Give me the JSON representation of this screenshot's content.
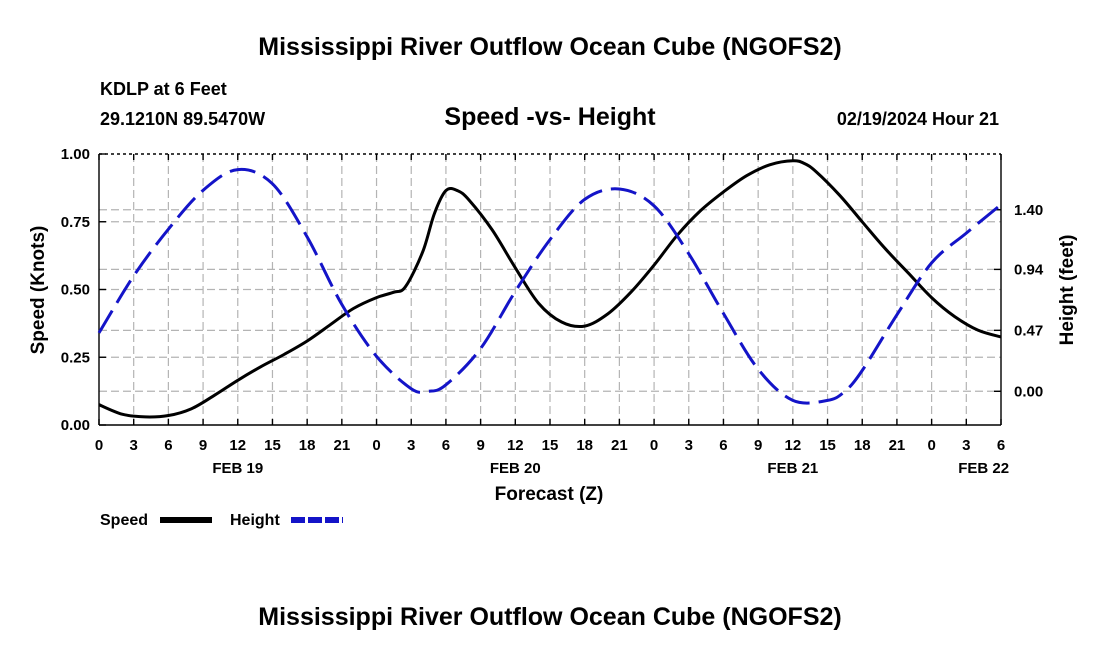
{
  "colors": {
    "speed": "#000000",
    "height": "#1414c8",
    "grid": "#b4b4b4"
  },
  "header": {
    "title_top": "Mississippi River Outflow Ocean Cube (NGOFS2)",
    "station": "KDLP at 6 Feet",
    "coords": "29.1210N  89.5470W",
    "chart_title": "Speed -vs- Height",
    "datetime": "02/19/2024 Hour 21",
    "title_bottom": "Mississippi River Outflow Ocean Cube (NGOFS2)"
  },
  "legend": {
    "speed_label": "Speed",
    "height_label": "Height"
  },
  "chart_data": {
    "type": "line",
    "title": "Speed -vs- Height",
    "xlabel": "Forecast (Z)",
    "ylabel": "Speed (Knots)",
    "y2label": "Height (feet)",
    "xlim": [
      0,
      78
    ],
    "ylim": [
      0,
      1.0
    ],
    "y2lim": [
      -0.26,
      1.83
    ],
    "x_ticks": [
      0,
      3,
      6,
      9,
      12,
      15,
      18,
      21,
      24,
      27,
      30,
      33,
      36,
      39,
      42,
      45,
      48,
      51,
      54,
      57,
      60,
      63,
      66,
      69,
      72,
      75,
      78
    ],
    "x_tick_labels": [
      "0",
      "3",
      "6",
      "9",
      "12",
      "15",
      "18",
      "21",
      "0",
      "3",
      "6",
      "9",
      "12",
      "15",
      "18",
      "21",
      "0",
      "3",
      "6",
      "9",
      "12",
      "15",
      "18",
      "21",
      "0",
      "3",
      "6"
    ],
    "date_labels": [
      {
        "x": 12,
        "label": "FEB 19"
      },
      {
        "x": 36,
        "label": "FEB 20"
      },
      {
        "x": 60,
        "label": "FEB 21"
      },
      {
        "x": 76.5,
        "label": "FEB 22"
      }
    ],
    "y_ticks": [
      0.0,
      0.25,
      0.5,
      0.75,
      1.0
    ],
    "y_tick_labels": [
      "0.00",
      "0.25",
      "0.50",
      "0.75",
      "1.00"
    ],
    "y2_ticks": [
      0.0,
      0.47,
      0.94,
      1.4
    ],
    "y2_tick_labels": [
      "0.00",
      "0.47",
      "0.94",
      "1.40"
    ],
    "grid": true,
    "legend_position": "bottom-left",
    "series": [
      {
        "name": "Speed",
        "axis": "left",
        "style": "solid",
        "x": [
          0,
          2,
          4,
          6,
          8,
          10,
          12,
          14,
          16,
          18,
          20,
          22,
          24,
          25.5,
          26.5,
          28,
          29,
          30,
          31,
          32,
          34,
          36,
          38,
          40,
          42,
          44,
          46,
          48,
          50,
          52,
          54,
          56,
          58,
          60,
          61,
          62,
          64,
          66,
          68,
          70,
          72,
          74,
          76,
          78
        ],
        "values": [
          0.075,
          0.04,
          0.03,
          0.035,
          0.06,
          0.11,
          0.165,
          0.215,
          0.26,
          0.31,
          0.37,
          0.43,
          0.47,
          0.49,
          0.51,
          0.64,
          0.78,
          0.865,
          0.865,
          0.83,
          0.72,
          0.58,
          0.45,
          0.38,
          0.365,
          0.41,
          0.49,
          0.59,
          0.7,
          0.79,
          0.86,
          0.92,
          0.96,
          0.975,
          0.965,
          0.935,
          0.85,
          0.75,
          0.65,
          0.56,
          0.47,
          0.4,
          0.35,
          0.325
        ]
      },
      {
        "name": "Height",
        "axis": "right",
        "style": "dashed",
        "x": [
          0,
          3,
          6,
          9,
          12,
          15,
          18,
          21,
          24,
          27,
          28.5,
          30,
          33,
          36,
          39,
          42,
          45,
          48,
          51,
          54,
          57,
          60,
          63,
          64.5,
          66,
          69,
          72,
          75,
          78
        ],
        "values": [
          0.45,
          0.89,
          1.25,
          1.55,
          1.71,
          1.6,
          1.19,
          0.67,
          0.27,
          0.02,
          0.0,
          0.05,
          0.33,
          0.77,
          1.17,
          1.48,
          1.56,
          1.43,
          1.06,
          0.6,
          0.17,
          -0.07,
          -0.07,
          0.0,
          0.16,
          0.59,
          0.99,
          1.22,
          1.44
        ]
      }
    ]
  }
}
